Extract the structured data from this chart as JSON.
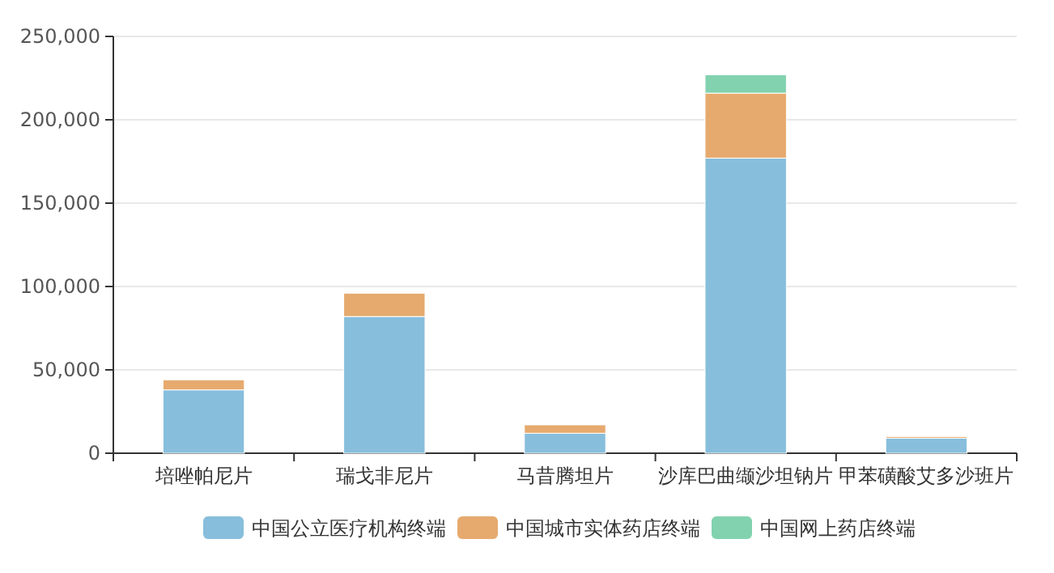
{
  "chart_data": {
    "type": "bar",
    "stacked": true,
    "categories": [
      "培唑帕尼片",
      "瑞戈非尼片",
      "马昔腾坦片",
      "沙库巴曲缬沙坦钠片",
      "甲苯磺酸艾多沙班片"
    ],
    "series": [
      {
        "name": "中国公立医疗机构终端",
        "color": "#87bedc",
        "values": [
          38000,
          82000,
          12000,
          177000,
          9000
        ]
      },
      {
        "name": "中国城市实体药店终端",
        "color": "#e6aa6e",
        "values": [
          6000,
          14000,
          5000,
          39000,
          1000
        ]
      },
      {
        "name": "中国网上药店终端",
        "color": "#82d2af",
        "values": [
          null,
          null,
          null,
          11000,
          null
        ]
      }
    ],
    "ylim": [
      0,
      250000
    ],
    "yticks": [
      {
        "value": 0,
        "label": "0"
      },
      {
        "value": 50000,
        "label": "50,000"
      },
      {
        "value": 100000,
        "label": "100,000"
      },
      {
        "value": 150000,
        "label": "150,000"
      },
      {
        "value": 200000,
        "label": "200,000"
      },
      {
        "value": 250000,
        "label": "250,000"
      }
    ],
    "grid": "y",
    "legend": "bottom"
  }
}
